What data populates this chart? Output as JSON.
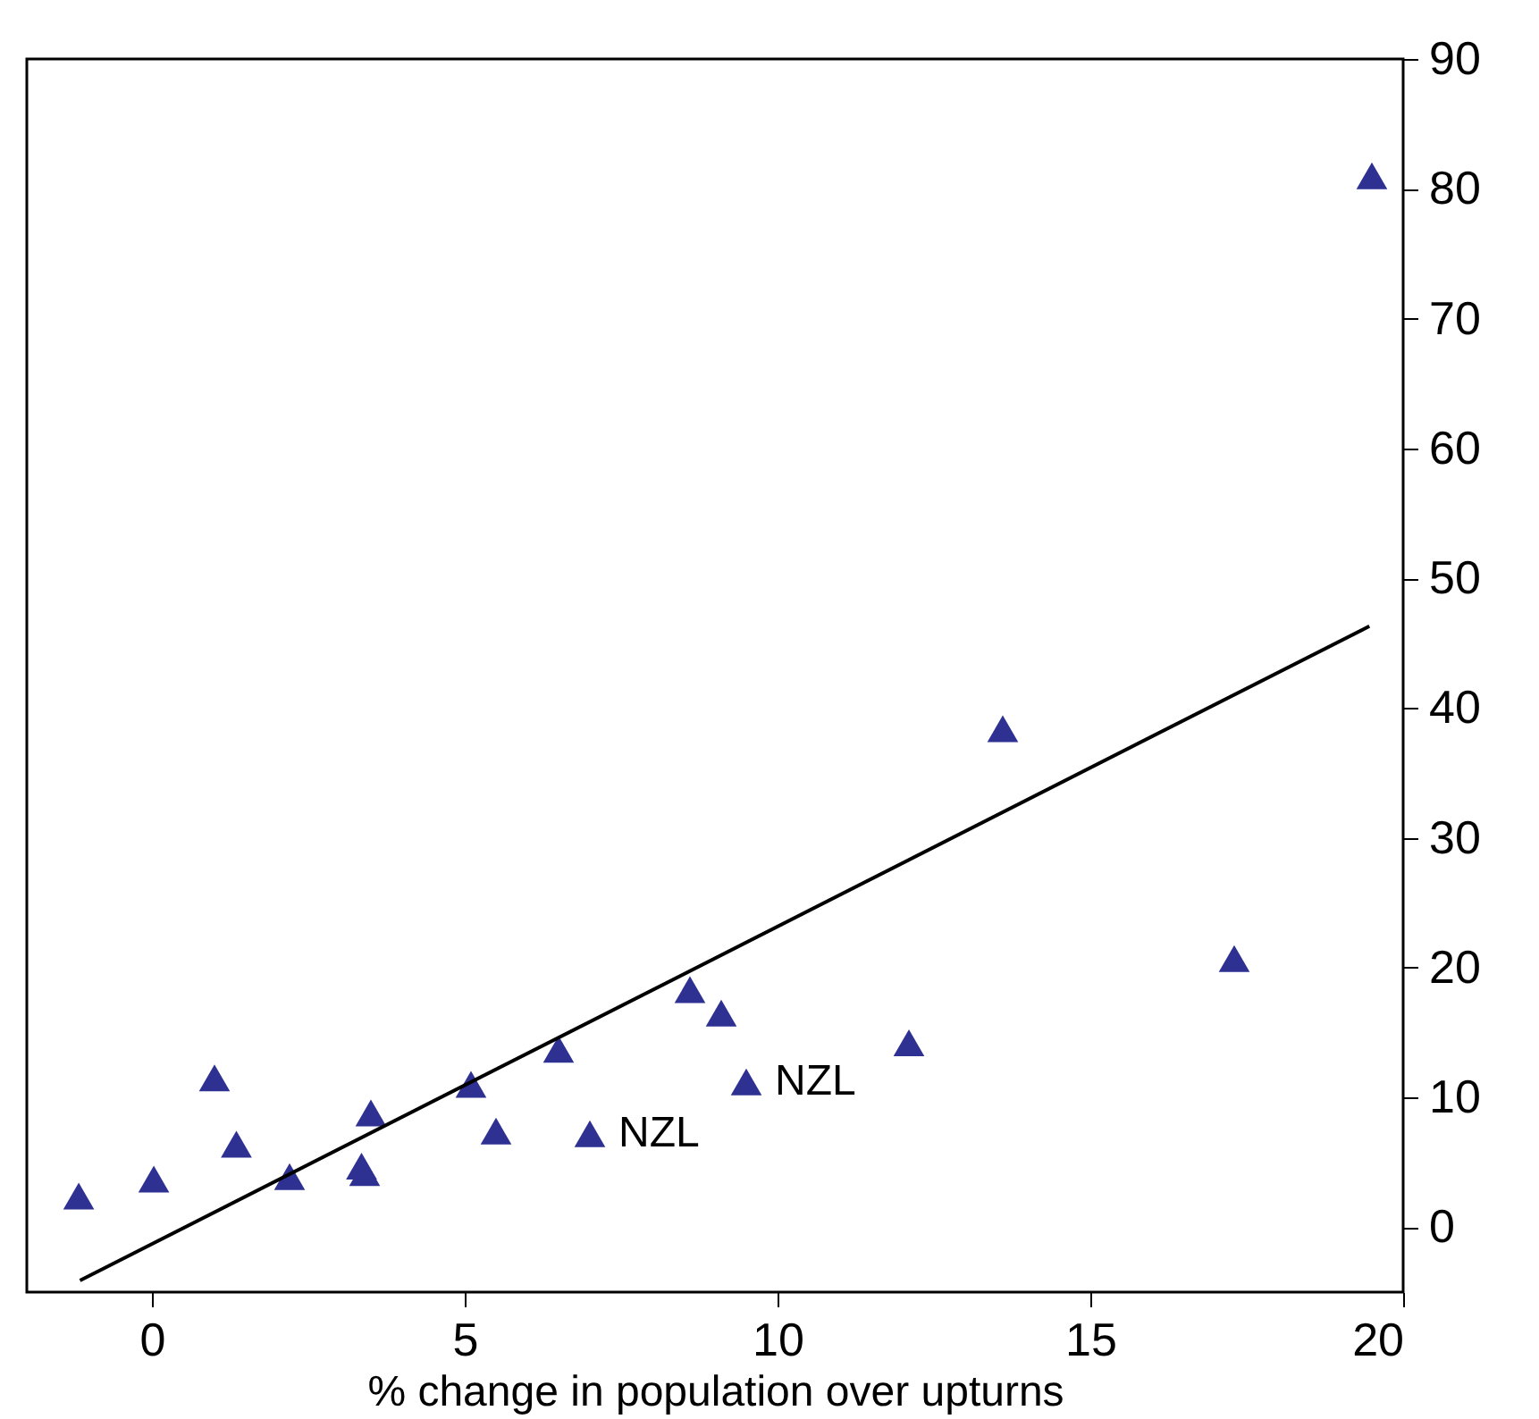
{
  "chart_data": {
    "type": "scatter",
    "xlabel": "% change in population over upturns",
    "xlim": [
      -2,
      20
    ],
    "xticks": [
      0,
      5,
      10,
      15,
      20
    ],
    "ylim": [
      -5,
      90
    ],
    "yticks": [
      0,
      10,
      20,
      30,
      40,
      50,
      60,
      70,
      80,
      90
    ],
    "grid": false,
    "series": [
      {
        "color": "#2e3192",
        "marker": "triangle",
        "x": [
          -1.17,
          0.03,
          1.0,
          1.35,
          2.2,
          3.35,
          3.4,
          3.5,
          5.1,
          5.5,
          6.5,
          7.0,
          8.6,
          9.1,
          9.5,
          12.1,
          13.6,
          17.3,
          19.5
        ],
        "values": [
          2.4,
          3.7,
          11.5,
          6.4,
          3.9,
          4.7,
          4.2,
          8.8,
          11,
          7.4,
          13.7,
          7.2,
          18.3,
          16.5,
          11.2,
          14.2,
          38.4,
          20.7,
          81
        ]
      },
      {
        "type": "line",
        "color": "#000000",
        "x": [
          -1.15,
          19.46
        ],
        "values": [
          -4.1,
          46.3
        ]
      }
    ],
    "annotations": [
      {
        "text": "NZL",
        "x": 7.0,
        "y": 7.2
      },
      {
        "text": "NZL",
        "x": 9.5,
        "y": 11.2
      }
    ]
  }
}
